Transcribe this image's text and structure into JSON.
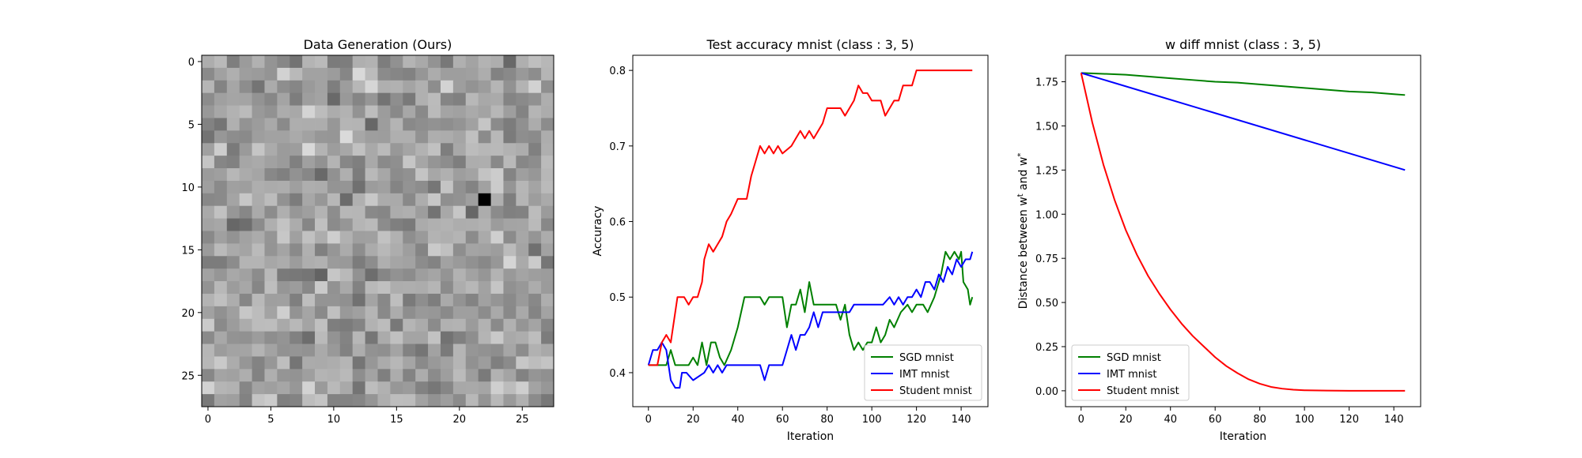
{
  "figure": {
    "background": "#ffffff",
    "colors": {
      "sgd": "#008000",
      "imt": "#0000ff",
      "student": "#ff0000"
    }
  },
  "chart_data": [
    {
      "type": "heatmap",
      "title": "Data Generation (Ours)",
      "xlabel": "",
      "ylabel": "",
      "rows": 28,
      "cols": 28,
      "colormap": "gray",
      "xlim": [
        -0.5,
        27.5
      ],
      "ylim": [
        27.5,
        -0.5
      ],
      "xticks": [
        0,
        5,
        10,
        15,
        20,
        25
      ],
      "yticks": [
        0,
        5,
        10,
        15,
        20,
        25
      ],
      "seed": 20231,
      "highlights": [
        {
          "row": 11,
          "col": 22,
          "value": 0.0
        }
      ]
    },
    {
      "type": "line",
      "title": "Test accuracy mnist (class : 3, 5)",
      "xlabel": "Iteration",
      "ylabel": "Accuracy",
      "xlim": [
        -7,
        152
      ],
      "ylim": [
        0.355,
        0.82
      ],
      "xticks": [
        0,
        20,
        40,
        60,
        80,
        100,
        120,
        140
      ],
      "yticks": [
        0.4,
        0.5,
        0.6,
        0.7,
        0.8
      ],
      "legend": "lower-right",
      "series": [
        {
          "name": "SGD mnist",
          "color": "#008000",
          "points": [
            [
              0,
              0.41
            ],
            [
              5,
              0.41
            ],
            [
              8,
              0.41
            ],
            [
              10,
              0.43
            ],
            [
              12,
              0.41
            ],
            [
              18,
              0.41
            ],
            [
              20,
              0.42
            ],
            [
              22,
              0.41
            ],
            [
              24,
              0.44
            ],
            [
              26,
              0.41
            ],
            [
              28,
              0.44
            ],
            [
              30,
              0.44
            ],
            [
              32,
              0.42
            ],
            [
              34,
              0.41
            ],
            [
              37,
              0.43
            ],
            [
              40,
              0.46
            ],
            [
              43,
              0.5
            ],
            [
              48,
              0.5
            ],
            [
              50,
              0.5
            ],
            [
              52,
              0.49
            ],
            [
              54,
              0.5
            ],
            [
              60,
              0.5
            ],
            [
              62,
              0.46
            ],
            [
              64,
              0.49
            ],
            [
              66,
              0.49
            ],
            [
              68,
              0.51
            ],
            [
              70,
              0.48
            ],
            [
              72,
              0.52
            ],
            [
              74,
              0.49
            ],
            [
              77,
              0.49
            ],
            [
              80,
              0.49
            ],
            [
              84,
              0.49
            ],
            [
              86,
              0.47
            ],
            [
              88,
              0.49
            ],
            [
              90,
              0.45
            ],
            [
              92,
              0.43
            ],
            [
              94,
              0.44
            ],
            [
              96,
              0.43
            ],
            [
              98,
              0.44
            ],
            [
              100,
              0.44
            ],
            [
              102,
              0.46
            ],
            [
              104,
              0.44
            ],
            [
              106,
              0.45
            ],
            [
              108,
              0.47
            ],
            [
              110,
              0.46
            ],
            [
              113,
              0.48
            ],
            [
              116,
              0.49
            ],
            [
              118,
              0.48
            ],
            [
              120,
              0.49
            ],
            [
              123,
              0.49
            ],
            [
              125,
              0.48
            ],
            [
              128,
              0.5
            ],
            [
              131,
              0.53
            ],
            [
              133,
              0.56
            ],
            [
              135,
              0.55
            ],
            [
              137,
              0.56
            ],
            [
              139,
              0.55
            ],
            [
              140,
              0.56
            ],
            [
              141,
              0.52
            ],
            [
              143,
              0.51
            ],
            [
              144,
              0.49
            ],
            [
              145,
              0.5
            ]
          ]
        },
        {
          "name": "IMT mnist",
          "color": "#0000ff",
          "points": [
            [
              0,
              0.41
            ],
            [
              2,
              0.43
            ],
            [
              4,
              0.43
            ],
            [
              6,
              0.44
            ],
            [
              8,
              0.43
            ],
            [
              10,
              0.39
            ],
            [
              12,
              0.38
            ],
            [
              14,
              0.38
            ],
            [
              15,
              0.4
            ],
            [
              17,
              0.4
            ],
            [
              20,
              0.39
            ],
            [
              25,
              0.4
            ],
            [
              27,
              0.41
            ],
            [
              29,
              0.4
            ],
            [
              31,
              0.41
            ],
            [
              33,
              0.4
            ],
            [
              35,
              0.41
            ],
            [
              40,
              0.41
            ],
            [
              50,
              0.41
            ],
            [
              52,
              0.39
            ],
            [
              54,
              0.41
            ],
            [
              60,
              0.41
            ],
            [
              62,
              0.43
            ],
            [
              64,
              0.45
            ],
            [
              66,
              0.43
            ],
            [
              68,
              0.45
            ],
            [
              70,
              0.45
            ],
            [
              72,
              0.46
            ],
            [
              74,
              0.48
            ],
            [
              76,
              0.46
            ],
            [
              78,
              0.48
            ],
            [
              80,
              0.48
            ],
            [
              84,
              0.48
            ],
            [
              88,
              0.48
            ],
            [
              90,
              0.48
            ],
            [
              92,
              0.49
            ],
            [
              100,
              0.49
            ],
            [
              105,
              0.49
            ],
            [
              108,
              0.5
            ],
            [
              110,
              0.49
            ],
            [
              112,
              0.5
            ],
            [
              114,
              0.49
            ],
            [
              116,
              0.5
            ],
            [
              118,
              0.5
            ],
            [
              120,
              0.51
            ],
            [
              122,
              0.5
            ],
            [
              124,
              0.52
            ],
            [
              126,
              0.52
            ],
            [
              128,
              0.51
            ],
            [
              130,
              0.53
            ],
            [
              132,
              0.52
            ],
            [
              134,
              0.54
            ],
            [
              136,
              0.53
            ],
            [
              138,
              0.55
            ],
            [
              140,
              0.54
            ],
            [
              142,
              0.55
            ],
            [
              144,
              0.55
            ],
            [
              145,
              0.56
            ]
          ]
        },
        {
          "name": "Student mnist",
          "color": "#ff0000",
          "points": [
            [
              0,
              0.41
            ],
            [
              4,
              0.41
            ],
            [
              6,
              0.44
            ],
            [
              8,
              0.45
            ],
            [
              10,
              0.44
            ],
            [
              12,
              0.48
            ],
            [
              13,
              0.5
            ],
            [
              16,
              0.5
            ],
            [
              18,
              0.49
            ],
            [
              20,
              0.5
            ],
            [
              22,
              0.5
            ],
            [
              24,
              0.52
            ],
            [
              25,
              0.55
            ],
            [
              27,
              0.57
            ],
            [
              29,
              0.56
            ],
            [
              31,
              0.57
            ],
            [
              33,
              0.58
            ],
            [
              35,
              0.6
            ],
            [
              37,
              0.61
            ],
            [
              40,
              0.63
            ],
            [
              44,
              0.63
            ],
            [
              46,
              0.66
            ],
            [
              48,
              0.68
            ],
            [
              50,
              0.7
            ],
            [
              52,
              0.69
            ],
            [
              54,
              0.7
            ],
            [
              56,
              0.69
            ],
            [
              58,
              0.7
            ],
            [
              60,
              0.69
            ],
            [
              64,
              0.7
            ],
            [
              66,
              0.71
            ],
            [
              68,
              0.72
            ],
            [
              70,
              0.71
            ],
            [
              72,
              0.72
            ],
            [
              74,
              0.71
            ],
            [
              78,
              0.73
            ],
            [
              80,
              0.75
            ],
            [
              86,
              0.75
            ],
            [
              88,
              0.74
            ],
            [
              90,
              0.75
            ],
            [
              92,
              0.76
            ],
            [
              94,
              0.78
            ],
            [
              96,
              0.77
            ],
            [
              98,
              0.77
            ],
            [
              100,
              0.76
            ],
            [
              104,
              0.76
            ],
            [
              106,
              0.74
            ],
            [
              108,
              0.75
            ],
            [
              110,
              0.76
            ],
            [
              112,
              0.76
            ],
            [
              114,
              0.78
            ],
            [
              118,
              0.78
            ],
            [
              120,
              0.8
            ],
            [
              145,
              0.8
            ]
          ]
        }
      ]
    },
    {
      "type": "line",
      "title": "w diff mnist (class : 3, 5)",
      "xlabel": "Iteration",
      "ylabel": "Distance between w^t and w^*",
      "xlim": [
        -7,
        152
      ],
      "ylim": [
        -0.09,
        1.9
      ],
      "xticks": [
        0,
        20,
        40,
        60,
        80,
        100,
        120,
        140
      ],
      "yticks": [
        0.0,
        0.25,
        0.5,
        0.75,
        1.0,
        1.25,
        1.5,
        1.75
      ],
      "yticklabels": [
        "0.00",
        "0.25",
        "0.50",
        "0.75",
        "1.00",
        "1.25",
        "1.50",
        "1.75"
      ],
      "legend": "lower-left",
      "series": [
        {
          "name": "SGD mnist",
          "color": "#008000",
          "points": [
            [
              0,
              1.8
            ],
            [
              10,
              1.795
            ],
            [
              20,
              1.79
            ],
            [
              30,
              1.78
            ],
            [
              40,
              1.77
            ],
            [
              50,
              1.76
            ],
            [
              60,
              1.75
            ],
            [
              70,
              1.745
            ],
            [
              80,
              1.735
            ],
            [
              90,
              1.725
            ],
            [
              100,
              1.715
            ],
            [
              110,
              1.705
            ],
            [
              120,
              1.695
            ],
            [
              130,
              1.69
            ],
            [
              140,
              1.68
            ],
            [
              145,
              1.675
            ]
          ]
        },
        {
          "name": "IMT mnist",
          "color": "#0000ff",
          "points": [
            [
              0,
              1.8
            ],
            [
              145,
              1.25
            ]
          ]
        },
        {
          "name": "Student mnist",
          "color": "#ff0000",
          "points": [
            [
              0,
              1.8
            ],
            [
              5,
              1.52
            ],
            [
              10,
              1.28
            ],
            [
              15,
              1.08
            ],
            [
              20,
              0.91
            ],
            [
              25,
              0.77
            ],
            [
              30,
              0.65
            ],
            [
              35,
              0.55
            ],
            [
              40,
              0.46
            ],
            [
              45,
              0.38
            ],
            [
              50,
              0.31
            ],
            [
              55,
              0.25
            ],
            [
              60,
              0.19
            ],
            [
              65,
              0.14
            ],
            [
              70,
              0.1
            ],
            [
              75,
              0.065
            ],
            [
              80,
              0.04
            ],
            [
              85,
              0.022
            ],
            [
              90,
              0.012
            ],
            [
              95,
              0.006
            ],
            [
              100,
              0.003
            ],
            [
              110,
              0.001
            ],
            [
              120,
              0.0
            ],
            [
              145,
              0.0
            ]
          ]
        }
      ]
    }
  ]
}
